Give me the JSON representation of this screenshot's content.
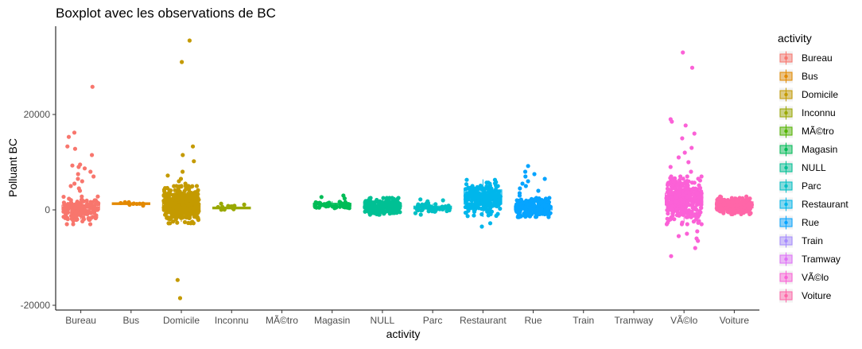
{
  "chart_data": {
    "type": "boxplot",
    "title": "Boxplot avec les observations de BC",
    "xlabel": "activity",
    "ylabel": "Polluant BC",
    "ylim": [
      -21000,
      38500
    ],
    "yticks": [
      -20000,
      0,
      20000
    ],
    "grid": false,
    "legend": {
      "title": "activity",
      "placement": "right"
    },
    "categories": [
      "Bureau",
      "Bus",
      "Domicile",
      "Inconnu",
      "MÃ©tro",
      "Magasin",
      "NULL",
      "Parc",
      "Restaurant",
      "Rue",
      "Train",
      "Tramway",
      "VÃ©lo",
      "Voiture"
    ],
    "colors": [
      "#F8766D",
      "#E38900",
      "#C49A00",
      "#99A800",
      "#53B400",
      "#00BC56",
      "#00C094",
      "#00BFC4",
      "#00B6EB",
      "#06A4FF",
      "#A58AFF",
      "#DF70F8",
      "#FB61D7",
      "#FF66A8"
    ],
    "boxes": [
      {
        "category": "Bureau",
        "q1": 0,
        "median": 500,
        "q3": 1000,
        "whisker_low": -2000,
        "whisker_high": 2500,
        "jitter_low": -3000,
        "jitter_high": 2800,
        "n_jitter": 160,
        "outliers": [
          25800,
          16200,
          15300,
          13300,
          12800,
          11500,
          9500,
          9300,
          9000,
          8700,
          8000,
          7500,
          7000,
          6500,
          6000,
          5500,
          5000,
          4500,
          4000
        ]
      },
      {
        "category": "Bus",
        "q1": 1100,
        "median": 1300,
        "q3": 1500,
        "whisker_low": 1000,
        "whisker_high": 1600,
        "jitter_low": 900,
        "jitter_high": 1700,
        "n_jitter": 8,
        "outliers": [
          1600,
          900
        ]
      },
      {
        "category": "Domicile",
        "q1": 0,
        "median": 600,
        "q3": 1300,
        "whisker_low": -2500,
        "whisker_high": 4000,
        "jitter_low": -2800,
        "jitter_high": 5000,
        "n_jitter": 420,
        "outliers": [
          35500,
          31000,
          13300,
          11500,
          10200,
          8000,
          7200,
          6500,
          6000,
          5500,
          -14700,
          -18500
        ]
      },
      {
        "category": "Inconnu",
        "q1": 200,
        "median": 400,
        "q3": 600,
        "whisker_low": 0,
        "whisker_high": 800,
        "jitter_low": -100,
        "jitter_high": 900,
        "n_jitter": 10,
        "outliers": [
          1300,
          1100
        ]
      },
      {
        "category": "MÃ©tro"
      },
      {
        "category": "Magasin",
        "q1": 700,
        "median": 1100,
        "q3": 1400,
        "whisker_low": 300,
        "whisker_high": 1800,
        "jitter_low": 200,
        "jitter_high": 2000,
        "n_jitter": 50,
        "outliers": [
          3000,
          2700,
          2400
        ]
      },
      {
        "category": "NULL",
        "q1": 200,
        "median": 900,
        "q3": 1500,
        "whisker_low": -1100,
        "whisker_high": 2600,
        "jitter_low": -1000,
        "jitter_high": 2500,
        "n_jitter": 220,
        "outliers": []
      },
      {
        "category": "Parc",
        "q1": 200,
        "median": 500,
        "q3": 800,
        "whisker_low": -300,
        "whisker_high": 1300,
        "jitter_low": -800,
        "jitter_high": 1400,
        "n_jitter": 50,
        "outliers": [
          2200,
          2000,
          1800,
          -1000
        ]
      },
      {
        "category": "Restaurant",
        "q1": 1200,
        "median": 2000,
        "q3": 4200,
        "whisker_low": -1500,
        "whisker_high": 6400,
        "jitter_low": -1300,
        "jitter_high": 6300,
        "n_jitter": 240,
        "outliers": [
          -2800,
          -3500
        ]
      },
      {
        "category": "Rue",
        "q1": 0,
        "median": 400,
        "q3": 800,
        "whisker_low": -1200,
        "whisker_high": 2000,
        "jitter_low": -1500,
        "jitter_high": 2500,
        "n_jitter": 260,
        "outliers": [
          9200,
          8000,
          7500,
          7000,
          6500,
          6000,
          5500,
          5000,
          4500,
          4000,
          3500,
          3000
        ]
      },
      {
        "category": "Train"
      },
      {
        "category": "Tramway"
      },
      {
        "category": "VÃ©lo",
        "q1": 1000,
        "median": 2200,
        "q3": 3500,
        "whisker_low": -2700,
        "whisker_high": 7000,
        "jitter_low": -3000,
        "jitter_high": 7000,
        "n_jitter": 320,
        "outliers": [
          33000,
          29800,
          19000,
          18500,
          17700,
          16000,
          15000,
          13000,
          12000,
          11000,
          10000,
          9000,
          8000,
          -4500,
          -5000,
          -5500,
          -6000,
          -6500,
          -8000,
          -9700
        ]
      },
      {
        "category": "Voiture",
        "q1": 400,
        "median": 1000,
        "q3": 1700,
        "whisker_low": -800,
        "whisker_high": 2800,
        "jitter_low": -900,
        "jitter_high": 2800,
        "n_jitter": 240,
        "outliers": []
      }
    ]
  }
}
